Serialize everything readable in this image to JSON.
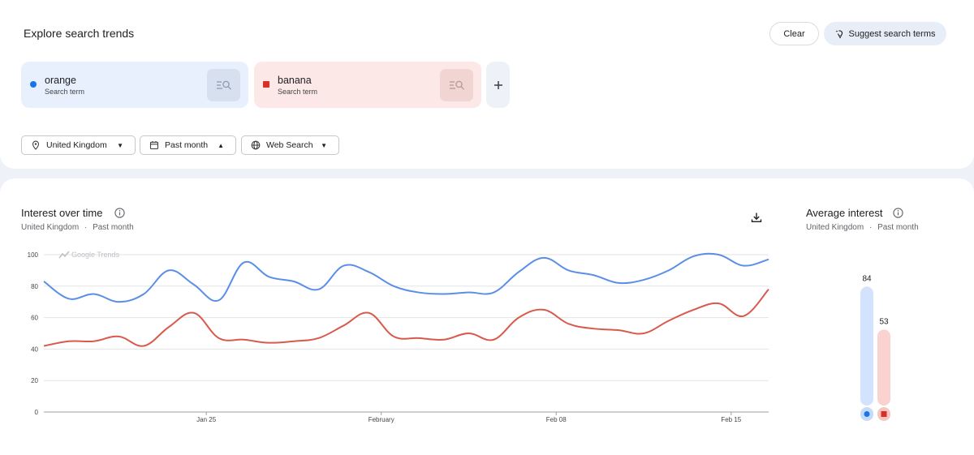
{
  "header": {
    "title": "Explore search trends",
    "clear_label": "Clear",
    "suggest_label": "Suggest search terms"
  },
  "terms": [
    {
      "name": "orange",
      "type": "Search term",
      "color": "#1a73e8"
    },
    {
      "name": "banana",
      "type": "Search term",
      "color": "#d93025"
    }
  ],
  "filters": {
    "region": "United Kingdom",
    "period": "Past month",
    "source": "Web Search"
  },
  "interest_over_time": {
    "title": "Interest over time",
    "region": "United Kingdom",
    "separator": "·",
    "period": "Past month",
    "watermark": "Google Trends"
  },
  "average_interest": {
    "title": "Average interest",
    "region": "United Kingdom",
    "separator": "·",
    "period": "Past month",
    "values": [
      84,
      53
    ],
    "labels": [
      "84",
      "53"
    ]
  },
  "chart_data": {
    "type": "line",
    "y_ticks": [
      "100",
      "80",
      "60",
      "40",
      "20",
      "0"
    ],
    "ylim": [
      0,
      100
    ],
    "x_tick_labels": [
      "Jan 25",
      "February",
      "Feb 08",
      "Feb 15"
    ],
    "x_tick_days": [
      6.5,
      13.5,
      20.5,
      27.5
    ],
    "x_range": [
      0,
      29
    ],
    "grid": true,
    "series": [
      {
        "name": "orange",
        "color": "#5b8ee6",
        "values": [
          83,
          72,
          75,
          70,
          75,
          90,
          81,
          71,
          95,
          86,
          83,
          78,
          93,
          89,
          80,
          76,
          75,
          76,
          76,
          89,
          98,
          90,
          87,
          82,
          84,
          90,
          99,
          100,
          93,
          97
        ]
      },
      {
        "name": "banana",
        "color": "#d9594c",
        "values": [
          42,
          45,
          45,
          48,
          42,
          54,
          63,
          47,
          46,
          44,
          45,
          47,
          55,
          63,
          48,
          47,
          46,
          50,
          46,
          60,
          65,
          56,
          53,
          52,
          50,
          58,
          65,
          69,
          61,
          78
        ]
      }
    ]
  }
}
